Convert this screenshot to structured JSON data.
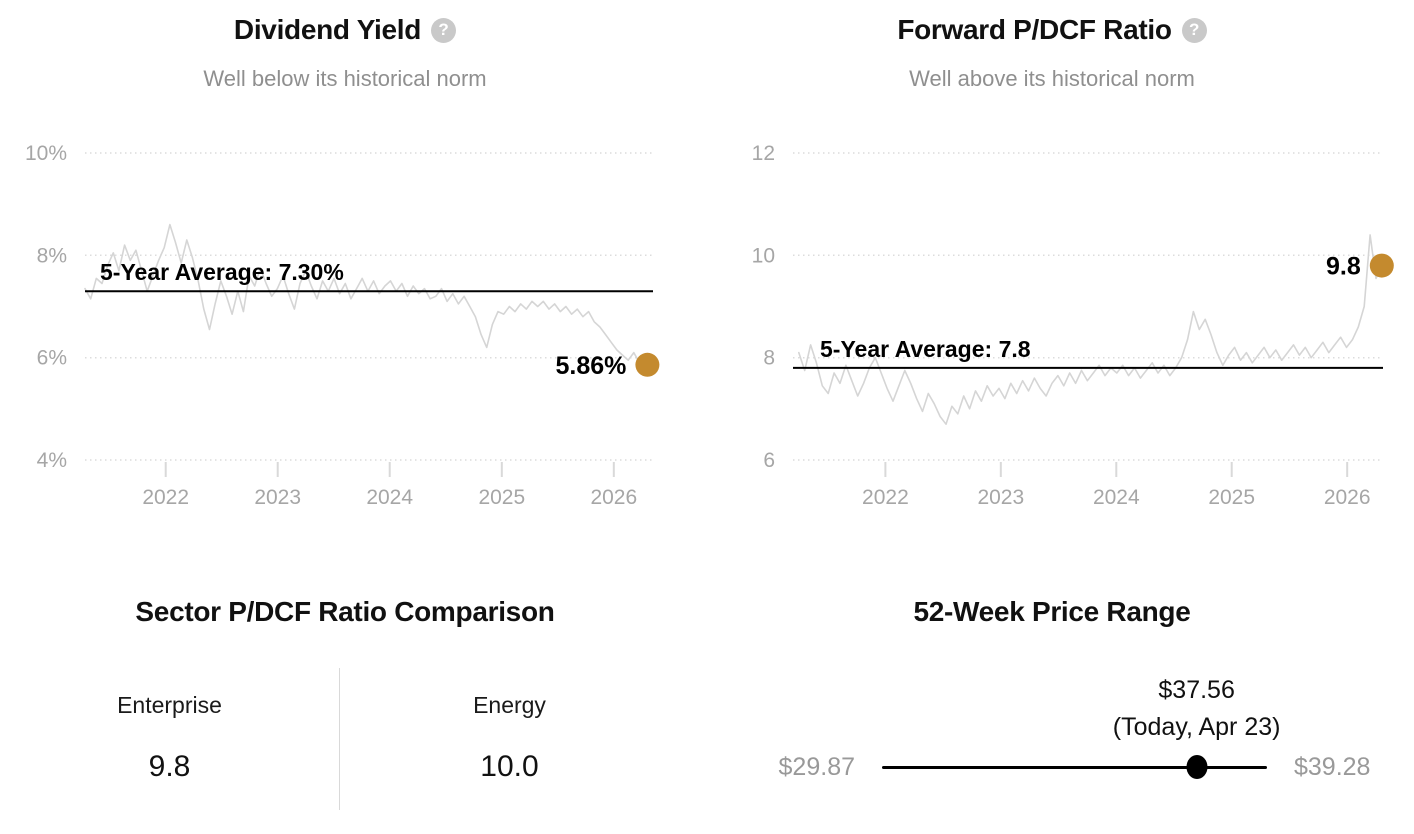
{
  "icons": {
    "help": "?"
  },
  "chart_data": [
    {
      "type": "line",
      "title": "Dividend Yield",
      "subtitle": "Well below its historical norm",
      "x_domain": [
        2021.28,
        2026.35
      ],
      "x_ticks": [
        2022,
        2023,
        2024,
        2025,
        2026
      ],
      "x_tick_labels": [
        "2022",
        "2023",
        "2024",
        "2025",
        "2026"
      ],
      "y_ticks": [
        4,
        6,
        8,
        10
      ],
      "y_tick_labels": [
        "4%",
        "6%",
        "8%",
        "10%"
      ],
      "ylim": [
        4,
        10
      ],
      "grid": "dotted-horizontal",
      "average": {
        "value": 7.3,
        "label": "5-Year Average: 7.30%"
      },
      "current": {
        "x": 2026.3,
        "value": 5.86,
        "label": "5.86%"
      },
      "line_color": "#d5d5d5",
      "dot_color": "#c48a2e",
      "series": [
        {
          "name": "Dividend Yield %",
          "x_range": [
            2021.28,
            2026.28
          ],
          "values": [
            7.35,
            7.15,
            7.55,
            7.45,
            7.8,
            8.05,
            7.7,
            8.2,
            7.9,
            8.1,
            7.7,
            7.3,
            7.6,
            7.9,
            8.15,
            8.6,
            8.25,
            7.85,
            8.3,
            7.95,
            7.5,
            6.95,
            6.55,
            7.05,
            7.5,
            7.2,
            6.85,
            7.3,
            6.9,
            7.6,
            7.4,
            7.75,
            7.45,
            7.2,
            7.35,
            7.6,
            7.25,
            6.95,
            7.45,
            7.7,
            7.4,
            7.15,
            7.5,
            7.3,
            7.55,
            7.25,
            7.45,
            7.15,
            7.35,
            7.55,
            7.3,
            7.5,
            7.25,
            7.4,
            7.5,
            7.3,
            7.45,
            7.2,
            7.4,
            7.25,
            7.35,
            7.15,
            7.2,
            7.35,
            7.1,
            7.25,
            7.05,
            7.2,
            7.0,
            6.8,
            6.45,
            6.2,
            6.65,
            6.9,
            6.85,
            7.0,
            6.9,
            7.05,
            6.95,
            7.1,
            7.0,
            7.1,
            6.95,
            7.05,
            6.9,
            7.0,
            6.85,
            6.95,
            6.8,
            6.9,
            6.7,
            6.6,
            6.45,
            6.3,
            6.15,
            6.05,
            5.95,
            6.1,
            5.9,
            5.86
          ]
        }
      ]
    },
    {
      "type": "line",
      "title": "Forward P/DCF Ratio",
      "subtitle": "Well above its historical norm",
      "x_domain": [
        2021.2,
        2026.31
      ],
      "x_ticks": [
        2022,
        2023,
        2024,
        2025,
        2026
      ],
      "x_tick_labels": [
        "2022",
        "2023",
        "2024",
        "2025",
        "2026"
      ],
      "y_ticks": [
        6,
        8,
        10,
        12
      ],
      "y_tick_labels": [
        "6",
        "8",
        "10",
        "12"
      ],
      "ylim": [
        6,
        12
      ],
      "grid": "dotted-horizontal",
      "average": {
        "value": 7.8,
        "label": "5-Year Average: 7.8"
      },
      "current": {
        "x": 2026.3,
        "value": 9.8,
        "label": "9.8"
      },
      "line_color": "#d5d5d5",
      "dot_color": "#c48a2e",
      "series": [
        {
          "name": "Forward P/DCF Ratio",
          "x_range": [
            2021.25,
            2026.3
          ],
          "values": [
            8.1,
            7.75,
            8.25,
            7.9,
            7.45,
            7.3,
            7.7,
            7.5,
            7.85,
            7.55,
            7.25,
            7.5,
            7.8,
            8.0,
            7.7,
            7.4,
            7.15,
            7.45,
            7.75,
            7.5,
            7.2,
            6.95,
            7.3,
            7.1,
            6.85,
            6.7,
            7.05,
            6.9,
            7.25,
            7.0,
            7.35,
            7.15,
            7.45,
            7.25,
            7.4,
            7.2,
            7.5,
            7.3,
            7.55,
            7.35,
            7.6,
            7.4,
            7.25,
            7.5,
            7.65,
            7.45,
            7.7,
            7.5,
            7.75,
            7.55,
            7.7,
            7.85,
            7.65,
            7.8,
            7.7,
            7.85,
            7.65,
            7.8,
            7.6,
            7.75,
            7.9,
            7.7,
            7.85,
            7.65,
            7.8,
            8.0,
            8.35,
            8.9,
            8.55,
            8.75,
            8.45,
            8.1,
            7.85,
            8.05,
            8.2,
            7.95,
            8.1,
            7.9,
            8.05,
            8.2,
            8.0,
            8.15,
            7.95,
            8.1,
            8.25,
            8.05,
            8.2,
            8.0,
            8.15,
            8.3,
            8.1,
            8.25,
            8.4,
            8.2,
            8.35,
            8.6,
            9.0,
            10.4,
            9.55,
            9.8
          ]
        }
      ]
    }
  ],
  "sector_comparison": {
    "title": "Sector P/DCF Ratio Comparison",
    "columns": [
      {
        "label": "Enterprise",
        "value": "9.8"
      },
      {
        "label": "Energy",
        "value": "10.0"
      }
    ]
  },
  "price_range": {
    "title": "52-Week Price Range",
    "current_price": "$37.56",
    "current_note": "(Today, Apr 23)",
    "low": "$29.87",
    "high": "$39.28",
    "low_value": 29.87,
    "high_value": 39.28,
    "current_value": 37.56
  }
}
